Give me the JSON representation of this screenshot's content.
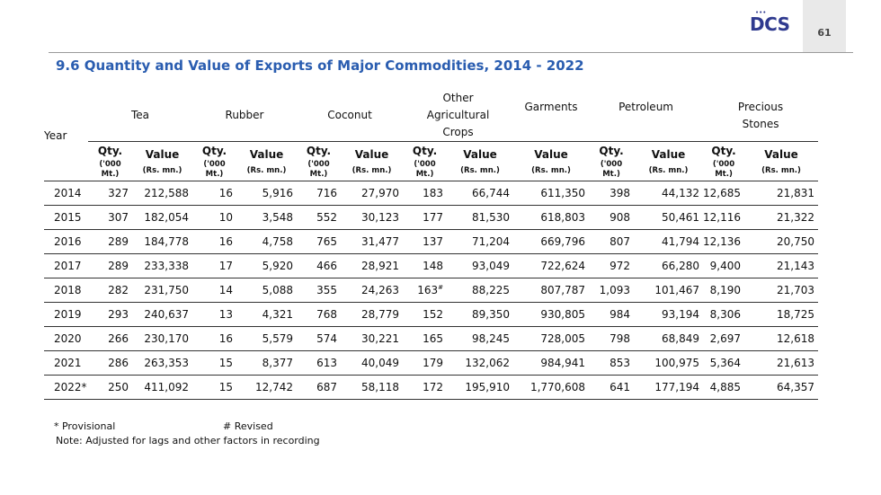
{
  "header": {
    "logo_text": "DCS",
    "logo_dots": "•••",
    "page_number": "61"
  },
  "title": "9.6 Quantity and Value of Exports of Major Commodities, 2014 - 2022",
  "table": {
    "year_header": "Year",
    "groups": {
      "tea": "Tea",
      "rubber": "Rubber",
      "coconut": "Coconut",
      "other_agri_1": "Other",
      "other_agri_2": "Agricultural",
      "other_agri_3": "Crops",
      "garments": "Garments",
      "petroleum": "Petroleum",
      "precious_1": "Precious",
      "precious_2": "Stones"
    },
    "sub": {
      "qty": "Qty.",
      "qty_unit_1": "('000",
      "qty_unit_2": "Mt.)",
      "value": "Value",
      "value_unit": "(Rs. mn.)"
    },
    "rows": [
      {
        "year": "2014",
        "tea_q": "327",
        "tea_v": "212,588",
        "rub_q": "16",
        "rub_v": "5,916",
        "coc_q": "716",
        "coc_v": "27,970",
        "oac_q": "183",
        "oac_mark": "",
        "oac_v": "66,744",
        "gar_v": "611,350",
        "pet_q": "398",
        "pet_v": "44,132",
        "ps_q": "12,685",
        "ps_v": "21,831"
      },
      {
        "year": "2015",
        "tea_q": "307",
        "tea_v": "182,054",
        "rub_q": "10",
        "rub_v": "3,548",
        "coc_q": "552",
        "coc_v": "30,123",
        "oac_q": "177",
        "oac_mark": "",
        "oac_v": "81,530",
        "gar_v": "618,803",
        "pet_q": "908",
        "pet_v": "50,461",
        "ps_q": "12,116",
        "ps_v": "21,322"
      },
      {
        "year": "2016",
        "tea_q": "289",
        "tea_v": "184,778",
        "rub_q": "16",
        "rub_v": "4,758",
        "coc_q": "765",
        "coc_v": "31,477",
        "oac_q": "137",
        "oac_mark": "",
        "oac_v": "71,204",
        "gar_v": "669,796",
        "pet_q": "807",
        "pet_v": "41,794",
        "ps_q": "12,136",
        "ps_v": "20,750"
      },
      {
        "year": "2017",
        "tea_q": "289",
        "tea_v": "233,338",
        "rub_q": "17",
        "rub_v": "5,920",
        "coc_q": "466",
        "coc_v": "28,921",
        "oac_q": "148",
        "oac_mark": "",
        "oac_v": "93,049",
        "gar_v": "722,624",
        "pet_q": "972",
        "pet_v": "66,280",
        "ps_q": "9,400",
        "ps_v": "21,143"
      },
      {
        "year": "2018",
        "tea_q": "282",
        "tea_v": "231,750",
        "rub_q": "14",
        "rub_v": "5,088",
        "coc_q": "355",
        "coc_v": "24,263",
        "oac_q": "163",
        "oac_mark": "#",
        "oac_v": "88,225",
        "gar_v": "807,787",
        "pet_q": "1,093",
        "pet_v": "101,467",
        "ps_q": "8,190",
        "ps_v": "21,703"
      },
      {
        "year": "2019",
        "tea_q": "293",
        "tea_v": "240,637",
        "rub_q": "13",
        "rub_v": "4,321",
        "coc_q": "768",
        "coc_v": "28,779",
        "oac_q": "152",
        "oac_mark": "",
        "oac_v": "89,350",
        "gar_v": "930,805",
        "pet_q": "984",
        "pet_v": "93,194",
        "ps_q": "8,306",
        "ps_v": "18,725"
      },
      {
        "year": "2020",
        "tea_q": "266",
        "tea_v": "230,170",
        "rub_q": "16",
        "rub_v": "5,579",
        "coc_q": "574",
        "coc_v": "30,221",
        "oac_q": "165",
        "oac_mark": "",
        "oac_v": "98,245",
        "gar_v": "728,005",
        "pet_q": "798",
        "pet_v": "68,849",
        "ps_q": "2,697",
        "ps_v": "12,618"
      },
      {
        "year": "2021",
        "tea_q": "286",
        "tea_v": "263,353",
        "rub_q": "15",
        "rub_v": "8,377",
        "coc_q": "613",
        "coc_v": "40,049",
        "oac_q": "179",
        "oac_mark": "",
        "oac_v": "132,062",
        "gar_v": "984,941",
        "pet_q": "853",
        "pet_v": "100,975",
        "ps_q": "5,364",
        "ps_v": "21,613"
      },
      {
        "year": "2022*",
        "tea_q": "250",
        "tea_v": "411,092",
        "rub_q": "15",
        "rub_v": "12,742",
        "coc_q": "687",
        "coc_v": "58,118",
        "oac_q": "172",
        "oac_mark": "",
        "oac_v": "195,910",
        "gar_v": "1,770,608",
        "pet_q": "641",
        "pet_v": "177,194",
        "ps_q": "4,885",
        "ps_v": "64,357"
      }
    ]
  },
  "footnotes": {
    "provisional": "* Provisional",
    "revised": "# Revised",
    "note": "Note:  Adjusted for lags and other factors in recording"
  }
}
